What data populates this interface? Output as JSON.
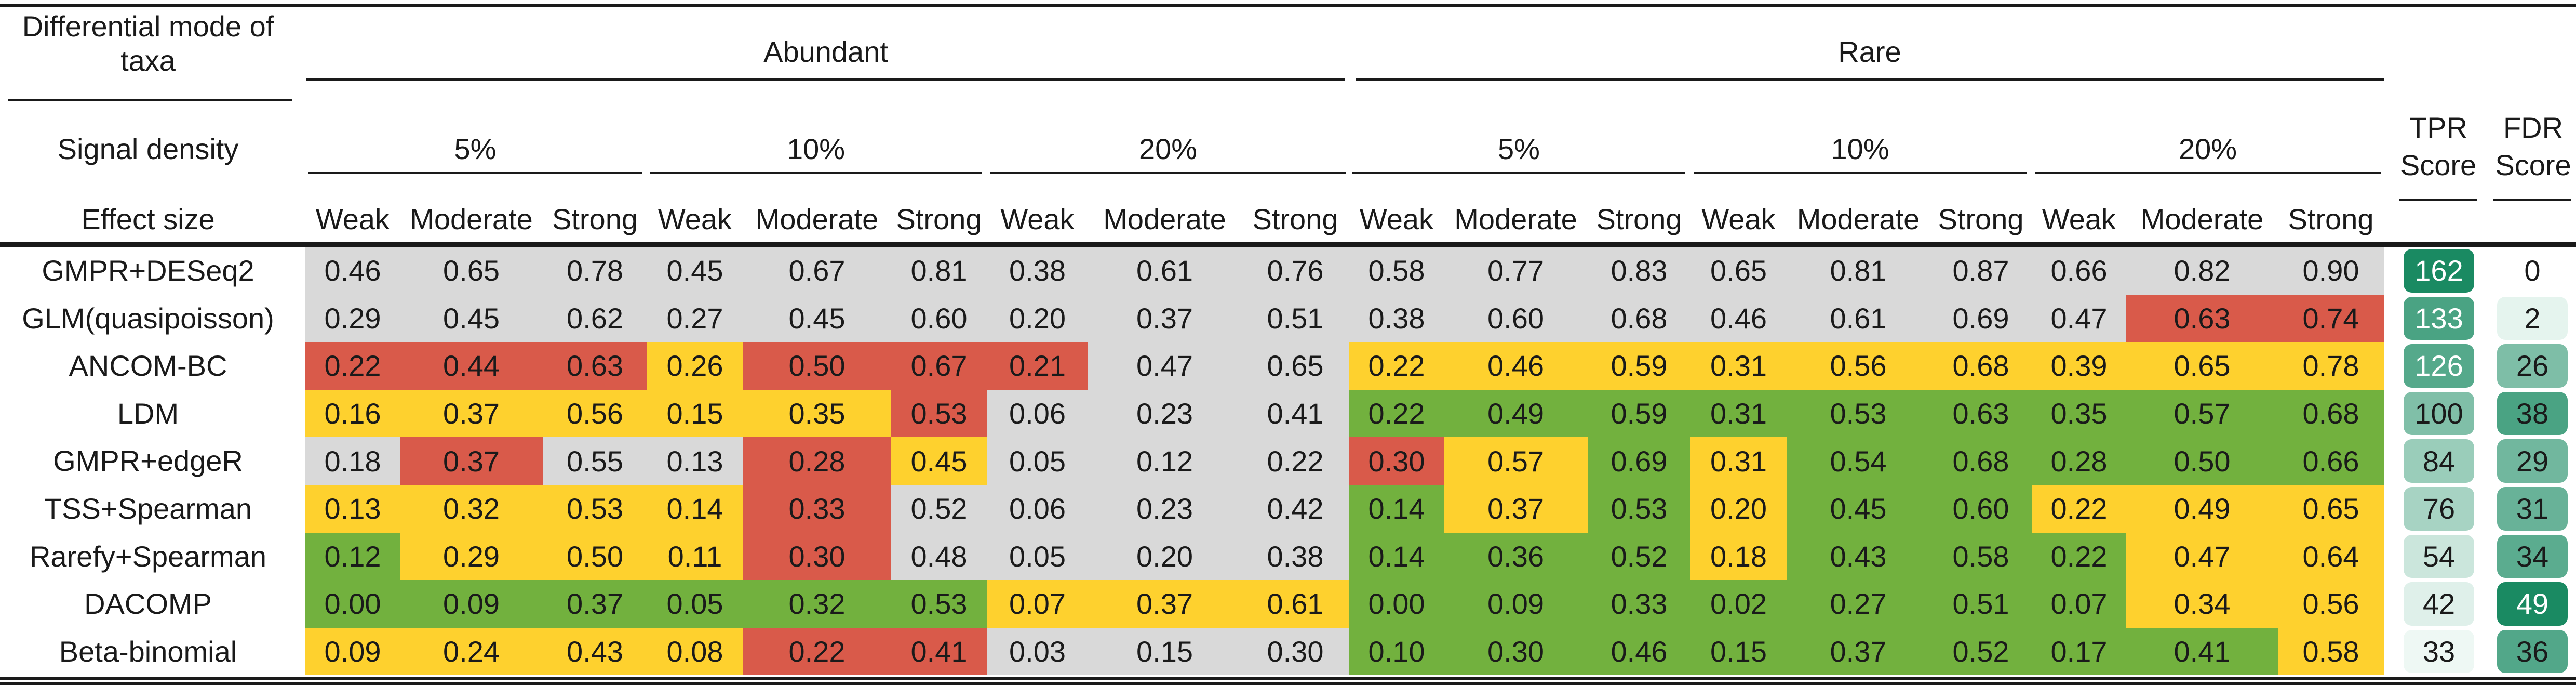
{
  "header": {
    "differential_mode_label": "Differential mode of taxa",
    "signal_density_label": "Signal density",
    "effect_size_label": "Effect size",
    "groups": [
      "Abundant",
      "Rare"
    ],
    "densities": [
      "5%",
      "10%",
      "20%",
      "5%",
      "10%",
      "20%"
    ],
    "effects": [
      "Weak",
      "Moderate",
      "Strong"
    ],
    "tpr_label_line1": "TPR",
    "tpr_label_line2": "Score",
    "fdr_label_line1": "FDR",
    "fdr_label_line2": "Score"
  },
  "colors": {
    "gray": "#d9d9d9",
    "red": "#d95a4a",
    "yellow": "#fed12e",
    "green": "#72b13e",
    "score_dark": "#1a8a62",
    "score_light": "#eef8f4"
  },
  "rows": [
    {
      "method": "GMPR+DESeq2",
      "values": [
        "0.46",
        "0.65",
        "0.78",
        "0.45",
        "0.67",
        "0.81",
        "0.38",
        "0.61",
        "0.76",
        "0.58",
        "0.77",
        "0.83",
        "0.65",
        "0.81",
        "0.87",
        "0.66",
        "0.82",
        "0.90"
      ],
      "colors": [
        "g",
        "g",
        "g",
        "g",
        "g",
        "g",
        "g",
        "g",
        "g",
        "g",
        "g",
        "g",
        "g",
        "g",
        "g",
        "g",
        "g",
        "g"
      ],
      "tpr": "162",
      "fdr": "0"
    },
    {
      "method": "GLM(quasipoisson)",
      "values": [
        "0.29",
        "0.45",
        "0.62",
        "0.27",
        "0.45",
        "0.60",
        "0.20",
        "0.37",
        "0.51",
        "0.38",
        "0.60",
        "0.68",
        "0.46",
        "0.61",
        "0.69",
        "0.47",
        "0.63",
        "0.74"
      ],
      "colors": [
        "g",
        "g",
        "g",
        "g",
        "g",
        "g",
        "g",
        "g",
        "g",
        "g",
        "g",
        "g",
        "g",
        "g",
        "g",
        "g",
        "r",
        "r"
      ],
      "tpr": "133",
      "fdr": "2"
    },
    {
      "method": "ANCOM-BC",
      "values": [
        "0.22",
        "0.44",
        "0.63",
        "0.26",
        "0.50",
        "0.67",
        "0.21",
        "0.47",
        "0.65",
        "0.22",
        "0.46",
        "0.59",
        "0.31",
        "0.56",
        "0.68",
        "0.39",
        "0.65",
        "0.78"
      ],
      "colors": [
        "r",
        "r",
        "r",
        "y",
        "r",
        "r",
        "r",
        "g",
        "g",
        "y",
        "y",
        "y",
        "y",
        "y",
        "y",
        "y",
        "y",
        "y"
      ],
      "tpr": "126",
      "fdr": "26"
    },
    {
      "method": "LDM",
      "values": [
        "0.16",
        "0.37",
        "0.56",
        "0.15",
        "0.35",
        "0.53",
        "0.06",
        "0.23",
        "0.41",
        "0.22",
        "0.49",
        "0.59",
        "0.31",
        "0.53",
        "0.63",
        "0.35",
        "0.57",
        "0.68"
      ],
      "colors": [
        "y",
        "y",
        "y",
        "y",
        "y",
        "r",
        "g",
        "g",
        "g",
        "G",
        "G",
        "G",
        "G",
        "G",
        "G",
        "G",
        "G",
        "G"
      ],
      "tpr": "100",
      "fdr": "38"
    },
    {
      "method": "GMPR+edgeR",
      "values": [
        "0.18",
        "0.37",
        "0.55",
        "0.13",
        "0.28",
        "0.45",
        "0.05",
        "0.12",
        "0.22",
        "0.30",
        "0.57",
        "0.69",
        "0.31",
        "0.54",
        "0.68",
        "0.28",
        "0.50",
        "0.66"
      ],
      "colors": [
        "g",
        "r",
        "g",
        "g",
        "r",
        "y",
        "g",
        "g",
        "g",
        "r",
        "y",
        "G",
        "y",
        "G",
        "G",
        "G",
        "G",
        "G"
      ],
      "tpr": "84",
      "fdr": "29"
    },
    {
      "method": "TSS+Spearman",
      "values": [
        "0.13",
        "0.32",
        "0.53",
        "0.14",
        "0.33",
        "0.52",
        "0.06",
        "0.23",
        "0.42",
        "0.14",
        "0.37",
        "0.53",
        "0.20",
        "0.45",
        "0.60",
        "0.22",
        "0.49",
        "0.65"
      ],
      "colors": [
        "y",
        "y",
        "y",
        "y",
        "r",
        "g",
        "g",
        "g",
        "g",
        "G",
        "y",
        "G",
        "y",
        "G",
        "G",
        "y",
        "y",
        "y"
      ],
      "tpr": "76",
      "fdr": "31"
    },
    {
      "method": "Rarefy+Spearman",
      "values": [
        "0.12",
        "0.29",
        "0.50",
        "0.11",
        "0.30",
        "0.48",
        "0.05",
        "0.20",
        "0.38",
        "0.14",
        "0.36",
        "0.52",
        "0.18",
        "0.43",
        "0.58",
        "0.22",
        "0.47",
        "0.64"
      ],
      "colors": [
        "G",
        "y",
        "y",
        "y",
        "r",
        "g",
        "g",
        "g",
        "g",
        "G",
        "G",
        "G",
        "y",
        "G",
        "G",
        "G",
        "y",
        "y"
      ],
      "tpr": "54",
      "fdr": "34"
    },
    {
      "method": "DACOMP",
      "values": [
        "0.00",
        "0.09",
        "0.37",
        "0.05",
        "0.32",
        "0.53",
        "0.07",
        "0.37",
        "0.61",
        "0.00",
        "0.09",
        "0.33",
        "0.02",
        "0.27",
        "0.51",
        "0.07",
        "0.34",
        "0.56"
      ],
      "colors": [
        "G",
        "G",
        "G",
        "G",
        "G",
        "G",
        "y",
        "y",
        "y",
        "G",
        "G",
        "G",
        "G",
        "G",
        "G",
        "G",
        "y",
        "y"
      ],
      "tpr": "42",
      "fdr": "49"
    },
    {
      "method": "Beta-binomial",
      "values": [
        "0.09",
        "0.24",
        "0.43",
        "0.08",
        "0.22",
        "0.41",
        "0.03",
        "0.15",
        "0.30",
        "0.10",
        "0.30",
        "0.46",
        "0.15",
        "0.37",
        "0.52",
        "0.17",
        "0.41",
        "0.58"
      ],
      "colors": [
        "y",
        "y",
        "y",
        "y",
        "r",
        "r",
        "g",
        "g",
        "g",
        "G",
        "G",
        "G",
        "G",
        "G",
        "G",
        "G",
        "G",
        "y"
      ],
      "tpr": "33",
      "fdr": "36"
    }
  ],
  "score_ranges": {
    "tpr": [
      33,
      162
    ],
    "fdr": [
      0,
      49
    ]
  }
}
